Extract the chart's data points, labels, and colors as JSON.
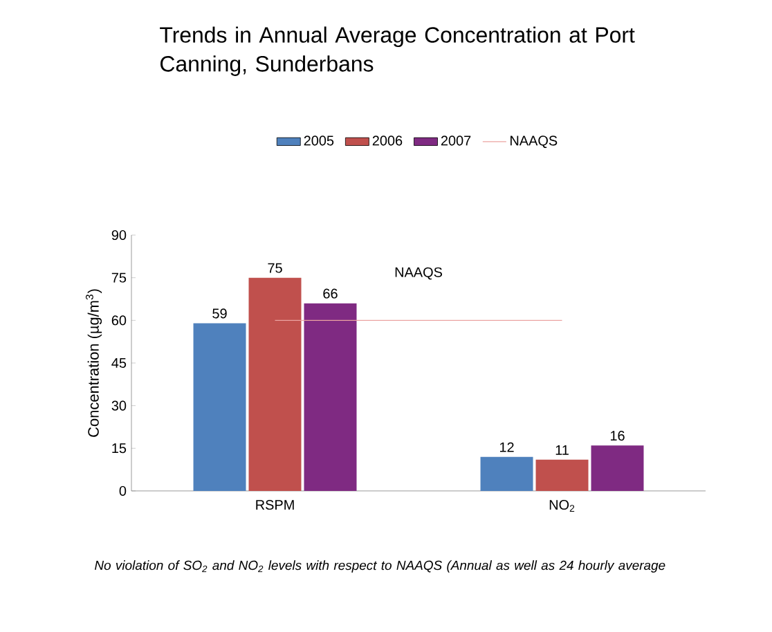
{
  "chart_data": {
    "type": "bar",
    "title": "Trends in Annual Average Concentration at Port Canning, Sunderbans",
    "ylabel": "Concentration (µg/m$^{3}$)",
    "categories": [
      "RSPM",
      "NO$_{2}$"
    ],
    "series": [
      {
        "name": "2005",
        "color": "#4f81bd",
        "values": [
          59,
          12
        ],
        "value_labels": [
          "59",
          "12"
        ]
      },
      {
        "name": "2006",
        "color": "#c0504d",
        "values": [
          75,
          11
        ],
        "value_labels": [
          "75",
          "11"
        ]
      },
      {
        "name": "2007",
        "color": "#7f2a82",
        "values": [
          66,
          16
        ],
        "value_labels": [
          "66",
          "16"
        ]
      },
      {
        "name": "NAAQS",
        "type": "line",
        "color": "#eba3a1",
        "values": [
          60,
          60
        ]
      }
    ],
    "ylim": [
      0,
      90
    ],
    "yticks": [
      0,
      15,
      30,
      45,
      60,
      75,
      90
    ],
    "legend": "top",
    "annotations": [
      "NAAQS",
      "No violation of SO$_{2}$ and NO$_{2}$ levels with respect to NAAQS (Annual as well as 24 hourly average"
    ]
  }
}
